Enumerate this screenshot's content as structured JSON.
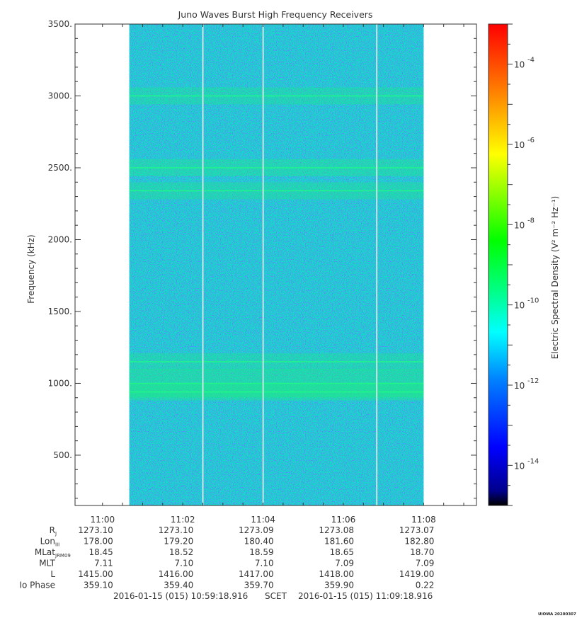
{
  "chart_data": {
    "type": "heatmap",
    "title": "Juno Waves Burst High Frequency Receivers",
    "ylabel": "Frequency (kHz)",
    "yticks": [
      500,
      1000,
      1500,
      2000,
      2500,
      3000,
      3500
    ],
    "ytick_labels": [
      "500.",
      "1000.",
      "1500.",
      "2000.",
      "2500.",
      "3000.",
      "3500."
    ],
    "ylim": [
      150,
      3500
    ],
    "x_start": "10:59:18.916",
    "x_end": "11:09:18.916",
    "xticks": [
      "11:00",
      "11:02",
      "11:04",
      "11:06",
      "11:08"
    ],
    "data_extent": {
      "start": "11:00:40",
      "end": "11:08:00"
    },
    "gap_lines": [
      "11:02:30",
      "11:04:00",
      "11:06:50"
    ],
    "bands": [
      {
        "frequency": 3000,
        "level": 0.55
      },
      {
        "frequency": 2500,
        "level": 0.62
      },
      {
        "frequency": 2340,
        "level": 0.58
      },
      {
        "frequency": 1150,
        "level": 0.55
      },
      {
        "frequency": 1000,
        "level": 0.7
      },
      {
        "frequency": 940,
        "level": 0.62
      }
    ],
    "colorbar": {
      "label": "Electric Spectral Density (V² m⁻² Hz⁻¹)",
      "scale": "log",
      "range_exponent": [
        -15,
        -3
      ],
      "tick_exponents": [
        -14,
        -12,
        -10,
        -8,
        -6,
        -4
      ],
      "tick_labels": [
        "10",
        "10",
        "10",
        "10",
        "10",
        "10"
      ],
      "tick_exp_labels": [
        "-14",
        "-12",
        "-10",
        "-8",
        "-6",
        "-4"
      ],
      "colors": [
        "#000000",
        "#00008c",
        "#0000ff",
        "#0080ff",
        "#00ffff",
        "#00ff80",
        "#00ff00",
        "#80ff00",
        "#ffff00",
        "#ff8000",
        "#ff0000"
      ]
    }
  },
  "ephemeris": {
    "rows": [
      {
        "label": "R",
        "sub": "J",
        "values": [
          "1273.10",
          "1273.10",
          "1273.09",
          "1273.08",
          "1273.07"
        ]
      },
      {
        "label": "Lon",
        "sub": "III",
        "values": [
          "178.00",
          "179.20",
          "180.40",
          "181.60",
          "182.80"
        ]
      },
      {
        "label": "MLat",
        "sub": "JRM09",
        "values": [
          "18.45",
          "18.52",
          "18.59",
          "18.65",
          "18.70"
        ]
      },
      {
        "label": "MLT",
        "sub": "",
        "values": [
          "7.11",
          "7.10",
          "7.10",
          "7.09",
          "7.09"
        ]
      },
      {
        "label": "L",
        "sub": "",
        "values": [
          "1415.00",
          "1416.00",
          "1417.00",
          "1418.00",
          "1419.00"
        ]
      },
      {
        "label": "Io Phase",
        "sub": "",
        "values": [
          "359.10",
          "359.40",
          "359.70",
          "359.90",
          "0.22"
        ]
      }
    ],
    "footer_start": "2016-01-15 (015) 10:59:18.916",
    "footer_mid": "SCET",
    "footer_end": "2016-01-15 (015) 11:09:18.916"
  },
  "watermark": "UIOWA 20200307"
}
